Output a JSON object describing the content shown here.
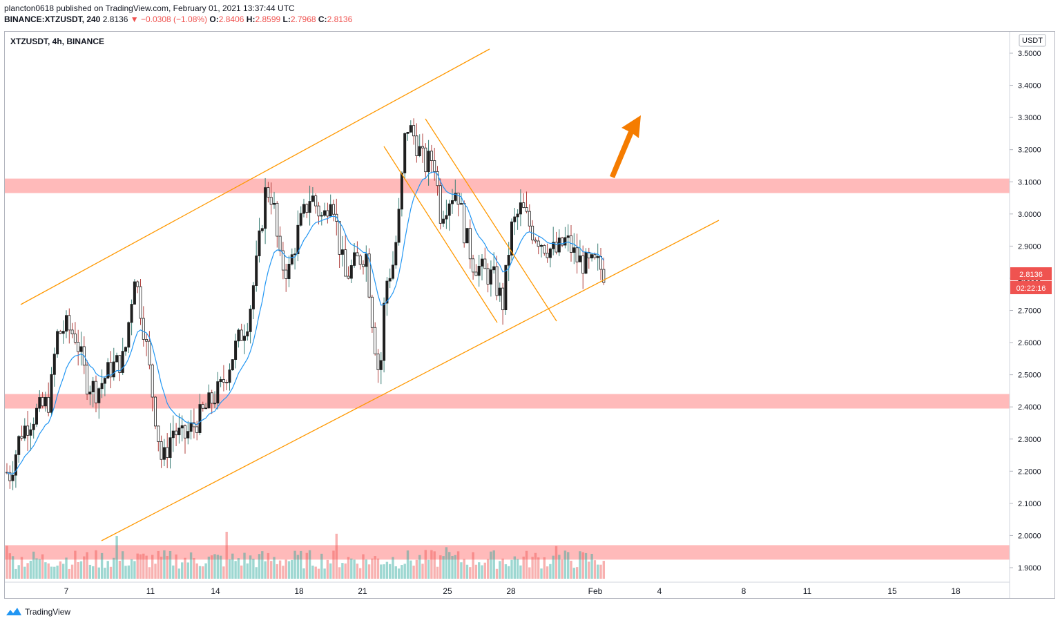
{
  "header": {
    "published": "plancton0618 published on TradingView.com, February 01, 2021 13:37:44 UTC",
    "symbol_line": "BINANCE:XTZUSDT, 240",
    "last": "2.8136",
    "change": "−0.0308 (−1.08%)",
    "o_label": "O:",
    "o": "2.8406",
    "h_label": "H:",
    "h": "2.8599",
    "l_label": "L:",
    "l": "2.7968",
    "c_label": "C:",
    "c": "2.8136"
  },
  "chart_data": {
    "type": "candlestick",
    "legend": "XTZUSDT, 4h, BINANCE",
    "currency": "USDT",
    "x_ticks": [
      "7",
      "11",
      "14",
      "18",
      "21",
      "25",
      "28",
      "Feb",
      "4",
      "8",
      "11",
      "15",
      "18"
    ],
    "y_ticks": [
      "3.5000",
      "3.4000",
      "3.3000",
      "3.2000",
      "3.1000",
      "3.0000",
      "2.9000",
      "2.8000",
      "2.7000",
      "2.6000",
      "2.5000",
      "2.4000",
      "2.3000",
      "2.2000",
      "2.1000",
      "2.0000",
      "1.9000"
    ],
    "ylim": [
      1.87,
      3.53
    ],
    "last_price": "2.8136",
    "countdown": "02:22:16",
    "zones": [
      {
        "from": 3.065,
        "to": 3.11
      },
      {
        "from": 2.395,
        "to": 2.44
      },
      {
        "from": 1.925,
        "to": 1.97
      }
    ],
    "colors": {
      "up": "#26a69a",
      "down": "#ef5350",
      "ma": "#2196f3",
      "channel": "#ff9800",
      "zone": "#ffb3b3",
      "arrow": "#f57c00"
    }
  },
  "footer": {
    "brand": "TradingView"
  }
}
